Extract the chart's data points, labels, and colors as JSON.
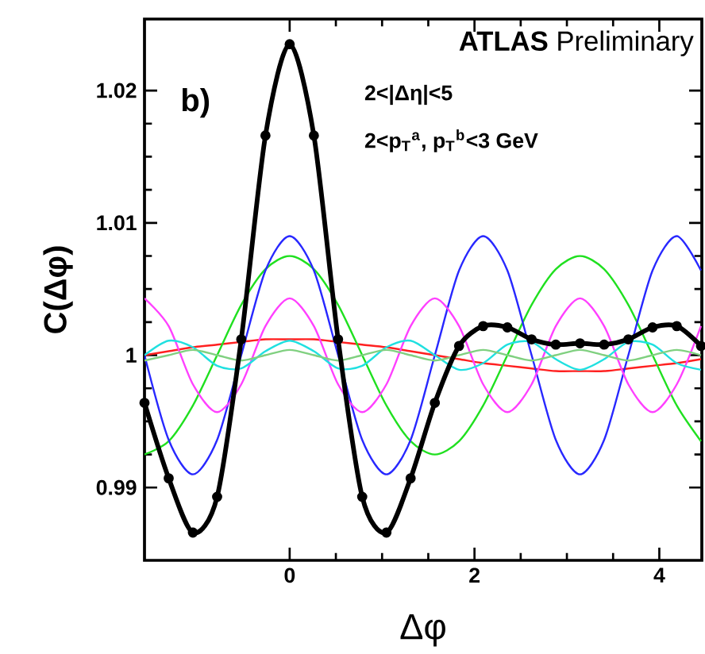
{
  "chart_data": {
    "type": "line",
    "xlabel": "Δφ",
    "ylabel": "C(Δφ)",
    "annotations": [
      "**ATLAS** Preliminary",
      "b)",
      "2<|Δη|<5",
      "2<p$_{T}$$^{a}$, p$_{T}$$^{b}$<3 GeV"
    ],
    "xlim": [
      -1.571,
      4.46
    ],
    "ylim": [
      0.9845,
      1.0254
    ],
    "xticks": [
      0,
      2,
      4
    ],
    "yticks": [
      0.99,
      1,
      1.01,
      1.02
    ],
    "line_style": "solid",
    "x": [
      -1.571,
      -1.309,
      -1.047,
      -0.785,
      -0.524,
      -0.262,
      0,
      0.262,
      0.524,
      0.785,
      1.047,
      1.309,
      1.571,
      1.833,
      2.094,
      2.356,
      2.618,
      2.88,
      3.142,
      3.403,
      3.665,
      3.927,
      4.189,
      4.451
    ],
    "series": [
      {
        "color": "#ff2020",
        "marker": "none",
        "values": [
          1.0,
          1.0003,
          1.0006,
          1.0008,
          1.001,
          1.0012,
          1.0012,
          1.0012,
          1.001,
          1.0008,
          1.0006,
          1.0003,
          1.0,
          0.9997,
          0.9994,
          0.9992,
          0.999,
          0.9988,
          0.9988,
          0.9988,
          0.999,
          0.9992,
          0.9994,
          0.9997
        ]
      },
      {
        "color": "#20e020",
        "marker": "none",
        "values": [
          0.9925,
          0.9935,
          0.9962,
          1.0,
          1.0038,
          1.0065,
          1.0075,
          1.0065,
          1.0038,
          1.0,
          0.9962,
          0.9935,
          0.9925,
          0.9935,
          0.9962,
          1.0,
          1.0038,
          1.0065,
          1.0075,
          1.0065,
          1.0038,
          1.0,
          0.9962,
          0.9935
        ]
      },
      {
        "color": "#2828ff",
        "marker": "none",
        "values": [
          1.0,
          0.9936,
          0.991,
          0.9936,
          1.0,
          1.0064,
          1.009,
          1.0064,
          1.0,
          0.9936,
          0.991,
          0.9936,
          1.0,
          1.0064,
          1.009,
          1.0064,
          1.0,
          0.9936,
          0.991,
          0.9936,
          1.0,
          1.0064,
          1.009,
          1.0064
        ]
      },
      {
        "color": "#ff40ff",
        "marker": "none",
        "values": [
          1.0043,
          1.0022,
          0.9978,
          0.9957,
          0.9978,
          1.0022,
          1.0043,
          1.0022,
          0.9978,
          0.9957,
          0.9978,
          1.0022,
          1.0043,
          1.0022,
          0.9978,
          0.9957,
          0.9978,
          1.0022,
          1.0043,
          1.0022,
          0.9978,
          0.9957,
          0.9978,
          1.0022
        ]
      },
      {
        "color": "#20e0e0",
        "marker": "none",
        "values": [
          1.0,
          1.0011,
          1.0006,
          0.9992,
          0.999,
          1.0003,
          1.0011,
          1.0003,
          0.999,
          0.9992,
          1.0006,
          1.0011,
          1.0,
          0.9989,
          0.9994,
          1.0008,
          1.001,
          0.9997,
          0.9989,
          0.9997,
          1.001,
          1.0008,
          0.9994,
          0.9989
        ]
      },
      {
        "color": "#80d080",
        "marker": "none",
        "values": [
          0.9996,
          1.0,
          1.0004,
          1.0,
          0.9996,
          1.0,
          1.0004,
          1.0,
          0.9996,
          1.0,
          1.0004,
          1.0,
          0.9996,
          1.0,
          1.0004,
          1.0,
          0.9996,
          1.0,
          1.0004,
          1.0,
          0.9996,
          1.0,
          1.0004,
          1.0
        ]
      },
      {
        "color": "#000000",
        "marker": "circle",
        "values": [
          0.9964,
          0.9907,
          0.9866,
          0.9893,
          1.0012,
          1.0166,
          1.0235,
          1.0166,
          1.0012,
          0.9893,
          0.9866,
          0.9907,
          0.9964,
          1.0007,
          1.0022,
          1.0021,
          1.0012,
          1.0008,
          1.0009,
          1.0008,
          1.0012,
          1.0021,
          1.0022,
          1.0007
        ]
      }
    ]
  }
}
